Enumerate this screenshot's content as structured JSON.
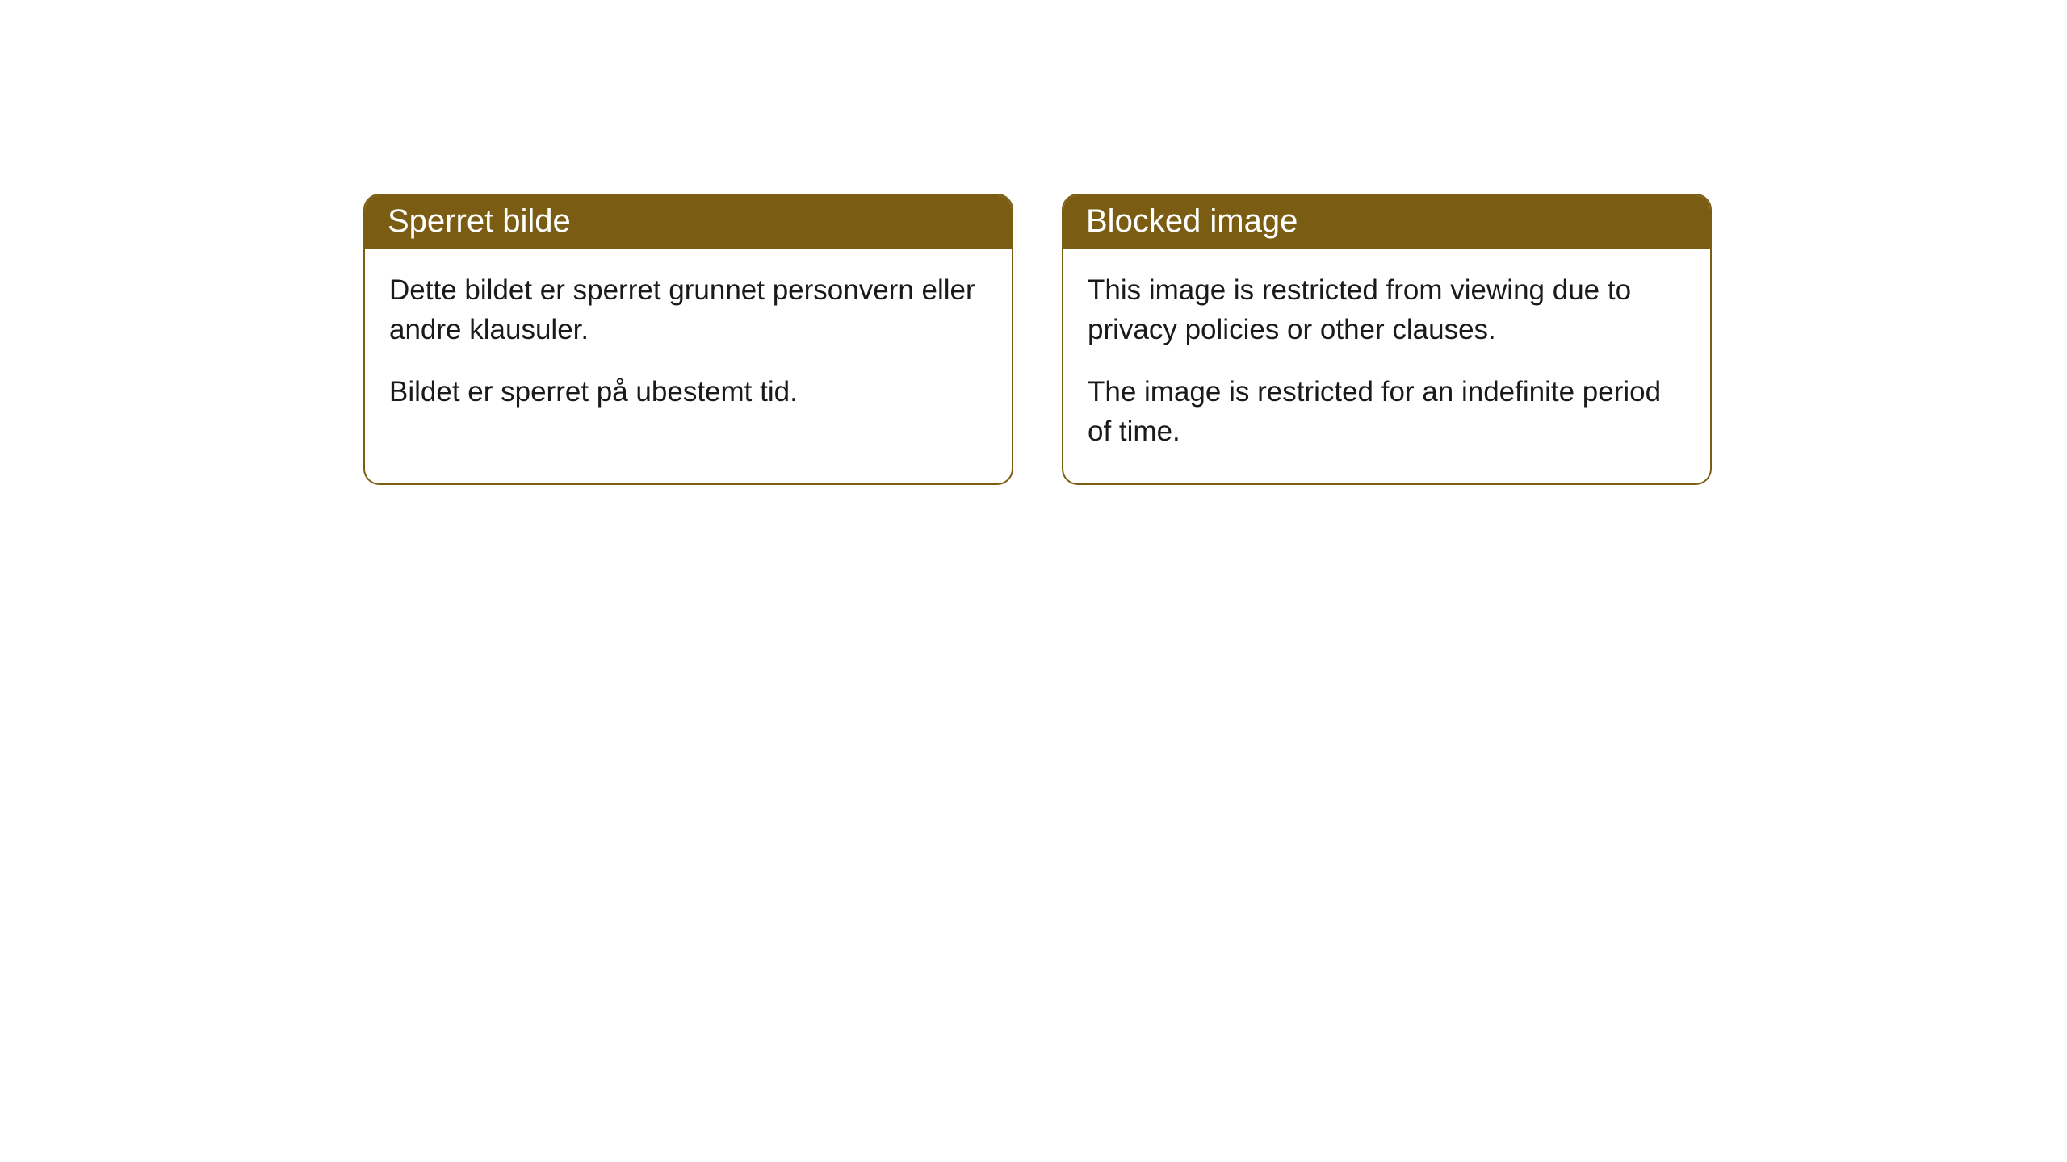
{
  "cards": [
    {
      "title": "Sperret bilde",
      "paragraph1": "Dette bildet er sperret grunnet personvern eller andre klausuler.",
      "paragraph2": "Bildet er sperret på ubestemt tid."
    },
    {
      "title": "Blocked image",
      "paragraph1": "This image is restricted from viewing due to privacy policies or other clauses.",
      "paragraph2": "The image is restricted for an indefinite period of time."
    }
  ],
  "style": {
    "header_background": "#7a5d13",
    "header_text_color": "#ffffff",
    "body_text_color": "#1a1a1a",
    "card_border_color": "#7a5d13",
    "card_background": "#ffffff",
    "page_background": "#ffffff",
    "header_fontsize": 40,
    "body_fontsize": 35,
    "border_radius": 20
  }
}
